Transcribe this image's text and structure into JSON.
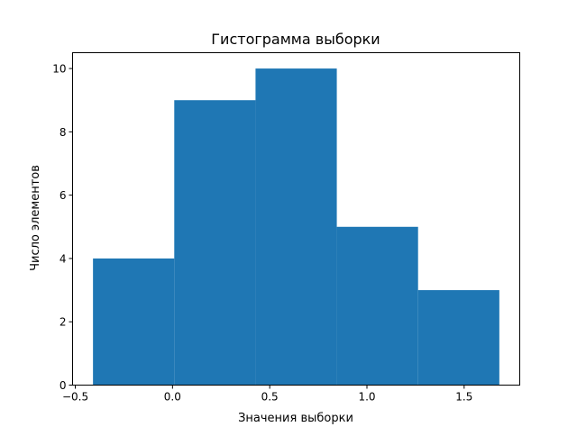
{
  "chart_data": {
    "type": "bar",
    "subtype": "histogram",
    "title": "Гистограмма выборки",
    "xlabel": "Значения выборки",
    "ylabel": "Число элементов",
    "bin_edges": [
      -0.409,
      0.009,
      0.427,
      0.845,
      1.263,
      1.681
    ],
    "values": [
      4,
      9,
      10,
      5,
      3
    ],
    "xlim": [
      -0.514,
      1.786
    ],
    "ylim": [
      0,
      10.5
    ],
    "xticks": [
      -0.5,
      0.0,
      0.5,
      1.0,
      1.5
    ],
    "xtick_labels": [
      "−0.5",
      "0.0",
      "0.5",
      "1.0",
      "1.5"
    ],
    "yticks": [
      0,
      2,
      4,
      6,
      8,
      10
    ],
    "ytick_labels": [
      "0",
      "2",
      "4",
      "6",
      "8",
      "10"
    ],
    "grid": false,
    "bar_color": "#1f77b4"
  }
}
